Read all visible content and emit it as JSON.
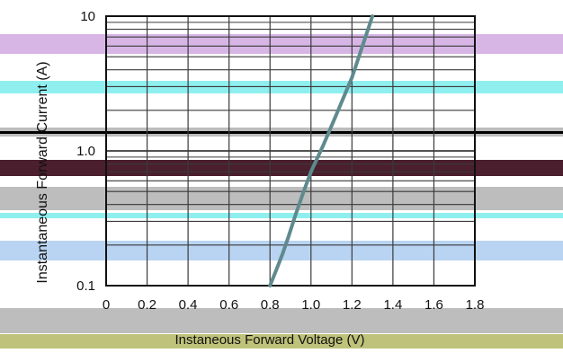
{
  "chart_data": {
    "type": "line",
    "title": "",
    "xlabel": "Instaneous Forward Voltage (V)",
    "ylabel": "Instantaneous Forward Current (A)",
    "xlim": [
      0,
      1.8
    ],
    "ylim": [
      0.1,
      10
    ],
    "yscale": "log",
    "grid": true,
    "x_ticks": [
      "0",
      "0.2",
      "0.4",
      "0.6",
      "0.8",
      "1.0",
      "1.2",
      "1.4",
      "1.6",
      "1.8"
    ],
    "y_ticks": [
      "0.1",
      "1.0",
      "10"
    ],
    "series": [
      {
        "x": [
          0.8,
          0.83,
          0.86,
          0.89,
          0.92,
          0.96,
          1.0,
          1.06,
          1.12,
          1.2,
          1.3
        ],
        "y": [
          0.1,
          0.13,
          0.17,
          0.23,
          0.32,
          0.48,
          0.7,
          1.1,
          1.8,
          3.5,
          10
        ]
      }
    ]
  },
  "colors": {
    "curve": "#5f8a8e",
    "grid": "#3a3a3a",
    "band_purple": "#d7b6e6",
    "band_cyan": "#8fefef",
    "band_maroon": "#4b1f2d",
    "band_gray": "#bdbdbd",
    "band_blue": "#b9d4f2",
    "band_olive": "#bfc27a"
  }
}
